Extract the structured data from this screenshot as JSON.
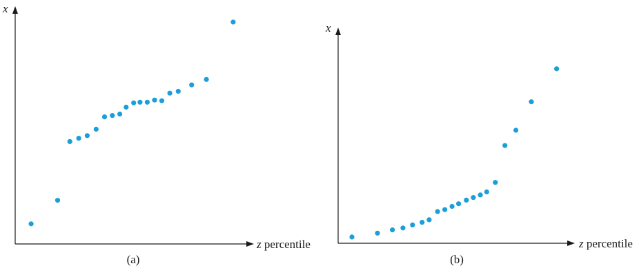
{
  "chart_data": [
    {
      "type": "scatter",
      "panel_id": "a",
      "caption": "(a)",
      "xlabel_var": "z",
      "xlabel_text": " percentile",
      "ylabel": "x",
      "color": "#1a9fd9",
      "grid": false,
      "xlim": [
        0,
        100
      ],
      "ylim": [
        0,
        100
      ],
      "points": [
        {
          "x": 6.8,
          "y": 8.5
        },
        {
          "x": 18.1,
          "y": 18.4
        },
        {
          "x": 23.3,
          "y": 43.2
        },
        {
          "x": 27.1,
          "y": 44.6
        },
        {
          "x": 30.7,
          "y": 45.7
        },
        {
          "x": 34.5,
          "y": 48.4
        },
        {
          "x": 38.1,
          "y": 53.6
        },
        {
          "x": 41.4,
          "y": 54.2
        },
        {
          "x": 44.6,
          "y": 54.8
        },
        {
          "x": 47.3,
          "y": 57.7
        },
        {
          "x": 50.5,
          "y": 59.5
        },
        {
          "x": 53.2,
          "y": 59.8
        },
        {
          "x": 56.3,
          "y": 59.8
        },
        {
          "x": 59.4,
          "y": 60.7
        },
        {
          "x": 62.5,
          "y": 60.4
        },
        {
          "x": 65.9,
          "y": 63.6
        },
        {
          "x": 69.5,
          "y": 64.4
        },
        {
          "x": 75.2,
          "y": 67.1
        },
        {
          "x": 81.5,
          "y": 69.4
        },
        {
          "x": 92.9,
          "y": 93.6
        }
      ]
    },
    {
      "type": "scatter",
      "panel_id": "b",
      "caption": "(b)",
      "xlabel_var": "z",
      "xlabel_text": " percentile",
      "ylabel": "x",
      "color": "#1a9fd9",
      "grid": false,
      "xlim": [
        0,
        100
      ],
      "ylim": [
        0,
        100
      ],
      "points": [
        {
          "x": 5.9,
          "y": 2.9
        },
        {
          "x": 16.8,
          "y": 4.7
        },
        {
          "x": 23.2,
          "y": 6.2
        },
        {
          "x": 27.7,
          "y": 7.1
        },
        {
          "x": 31.8,
          "y": 8.5
        },
        {
          "x": 35.9,
          "y": 9.7
        },
        {
          "x": 38.9,
          "y": 10.9
        },
        {
          "x": 42.5,
          "y": 14.7
        },
        {
          "x": 45.6,
          "y": 15.6
        },
        {
          "x": 48.7,
          "y": 17.1
        },
        {
          "x": 51.5,
          "y": 18.3
        },
        {
          "x": 54.8,
          "y": 20.0
        },
        {
          "x": 57.8,
          "y": 21.2
        },
        {
          "x": 60.8,
          "y": 22.4
        },
        {
          "x": 63.5,
          "y": 23.8
        },
        {
          "x": 67.2,
          "y": 28.2
        },
        {
          "x": 71.3,
          "y": 45.3
        },
        {
          "x": 76.0,
          "y": 52.4
        },
        {
          "x": 82.6,
          "y": 65.6
        },
        {
          "x": 93.4,
          "y": 80.9
        }
      ]
    }
  ]
}
